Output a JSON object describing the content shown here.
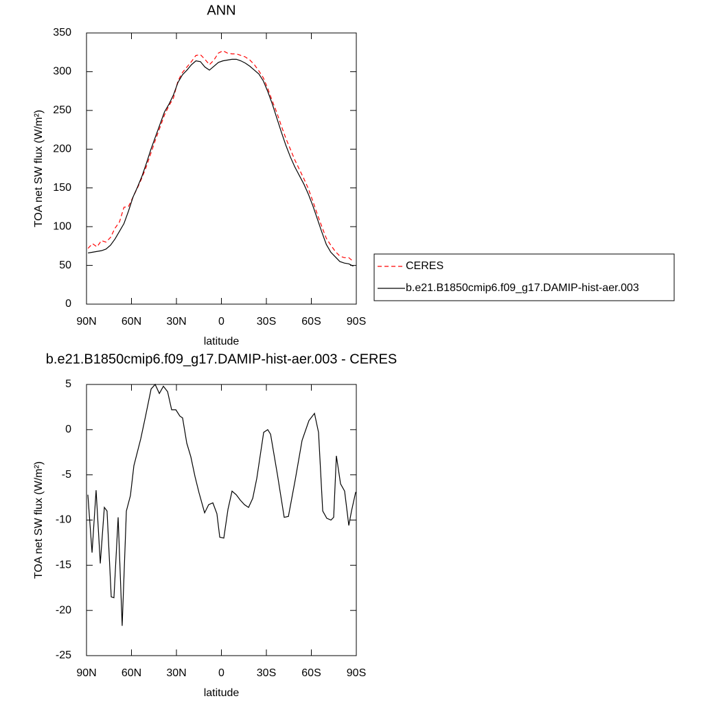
{
  "chart_data": [
    {
      "type": "line",
      "title": "ANN",
      "xlabel": "latitude",
      "ylabel": "TOA net SW flux (W/m²)",
      "x": [
        89,
        86,
        83,
        80,
        77,
        74,
        71,
        68,
        65,
        62,
        59,
        56,
        53,
        50,
        47,
        44,
        41,
        38,
        35,
        32,
        29,
        26,
        23,
        20,
        17,
        14,
        11,
        8,
        5,
        2,
        -1,
        -4,
        -7,
        -10,
        -13,
        -16,
        -19,
        -22,
        -25,
        -28,
        -31,
        -34,
        -37,
        -40,
        -43,
        -46,
        -49,
        -52,
        -55,
        -58,
        -61,
        -64,
        -67,
        -70,
        -73,
        -76,
        -79,
        -82,
        -85,
        -88
      ],
      "series": [
        {
          "name": "CERES",
          "color": "#ff0000",
          "line_style": "dashed",
          "values": [
            72,
            78,
            74,
            82,
            80,
            86,
            98,
            106,
            125,
            126,
            138,
            150,
            163,
            178,
            195,
            212,
            228,
            244,
            256,
            266,
            288,
            299,
            306,
            313,
            321,
            322,
            316,
            309,
            315,
            324,
            327,
            324,
            323,
            323,
            321,
            319,
            315,
            309,
            301,
            292,
            278,
            262,
            247,
            230,
            214,
            200,
            186,
            174,
            162,
            149,
            133,
            116,
            100,
            85,
            76,
            68,
            62,
            60,
            60,
            55
          ]
        },
        {
          "name": "b.e21.B1850cmip6.f09_g17.DAMIP-hist-aer.003",
          "color": "#000000",
          "line_style": "solid",
          "values": [
            66,
            67,
            68,
            69,
            71,
            76,
            84,
            94,
            104,
            120,
            138,
            151,
            165,
            182,
            200,
            216,
            232,
            248,
            258,
            270,
            286,
            296,
            302,
            309,
            314,
            313,
            306,
            302,
            307,
            312,
            314,
            315,
            316,
            316,
            314,
            311,
            307,
            302,
            297,
            288,
            274,
            258,
            240,
            222,
            205,
            190,
            177,
            166,
            155,
            142,
            127,
            110,
            93,
            77,
            67,
            61,
            55,
            53,
            52,
            49
          ]
        }
      ],
      "xlim": [
        90,
        -90
      ],
      "xticks": [
        {
          "value": 90,
          "label": "90N"
        },
        {
          "value": 60,
          "label": "60N"
        },
        {
          "value": 30,
          "label": "30N"
        },
        0,
        {
          "value": -30,
          "label": "30S"
        },
        {
          "value": -60,
          "label": "60S"
        },
        {
          "value": -90,
          "label": "90S"
        }
      ],
      "ylim": [
        0,
        350
      ],
      "yticks": [
        0,
        50,
        100,
        150,
        200,
        250,
        300,
        350
      ],
      "legend": "right"
    },
    {
      "type": "line",
      "title": "b.e21.B1850cmip6.f09_g17.DAMIP-hist-aer.003 - CERES",
      "xlabel": "latitude",
      "ylabel": "TOA net SW flux (W/m²)",
      "x": [
        89.1,
        86.3,
        83.6,
        80.8,
        78.1,
        76.3,
        73.5,
        71.7,
        68.9,
        66.2,
        63.4,
        60.7,
        58.4,
        53.8,
        50.6,
        46.9,
        44.2,
        41.4,
        38.7,
        35.9,
        33.2,
        30.4,
        27.7,
        25.9,
        23.1,
        20.4,
        17.6,
        14.9,
        11.2,
        8.5,
        5.7,
        3.0,
        1.1,
        -1.6,
        -4.4,
        -7.1,
        -9.9,
        -12.6,
        -15.4,
        -18.1,
        -20.9,
        -23.6,
        -28.2,
        -30.9,
        -32.8,
        -37.4,
        -41.9,
        -44.7,
        -49.3,
        -53.8,
        -58.4,
        -62.1,
        -64.8,
        -67.6,
        -70.3,
        -73.1,
        -74.9,
        -76.7,
        -79.5,
        -82.2,
        -85.0,
        -86.8,
        -89.6
      ],
      "values": [
        -7.2,
        -13.6,
        -6.7,
        -14.8,
        -8.6,
        -9.0,
        -18.5,
        -18.6,
        -9.7,
        -21.7,
        -9.0,
        -7.3,
        -4,
        -1,
        1.5,
        4.5,
        5,
        4,
        4.8,
        4.2,
        2.2,
        2.2,
        1.5,
        1.3,
        -1.5,
        -3,
        -5.2,
        -7,
        -9.2,
        -8.3,
        -8.1,
        -9.3,
        -11.9,
        -12,
        -8.8,
        -6.8,
        -7.2,
        -7.8,
        -8.3,
        -8.6,
        -7.6,
        -5.4,
        -0.3,
        0,
        -0.5,
        -5,
        -9.7,
        -9.6,
        -5.5,
        -1.2,
        1,
        1.8,
        -0.3,
        -9,
        -9.8,
        -10,
        -9.7,
        -2.9,
        -6,
        -6.8,
        -10.6,
        -9,
        -6.9
      ],
      "color": "#000000",
      "xlim": [
        90,
        -90
      ],
      "xticks": [
        {
          "value": 90,
          "label": "90N"
        },
        {
          "value": 60,
          "label": "60N"
        },
        {
          "value": 30,
          "label": "30N"
        },
        0,
        {
          "value": -30,
          "label": "30S"
        },
        {
          "value": -60,
          "label": "60S"
        },
        {
          "value": -90,
          "label": "90S"
        }
      ],
      "ylim": [
        -25,
        5
      ],
      "yticks": [
        -25,
        -20,
        -15,
        -10,
        -5,
        0,
        5
      ]
    }
  ]
}
